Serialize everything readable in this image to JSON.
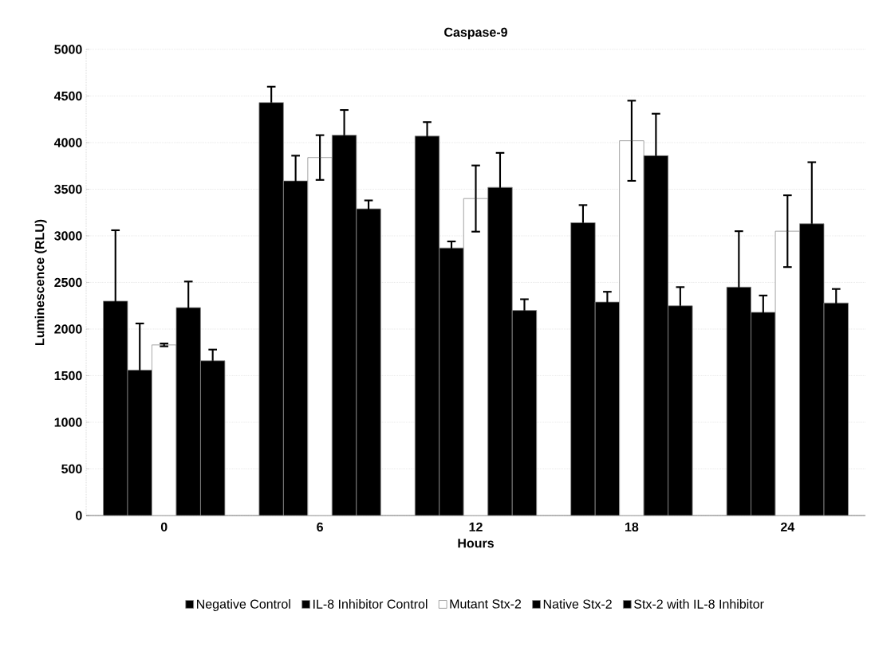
{
  "chart_data": {
    "type": "bar",
    "title": "Caspase-9",
    "xlabel": "Hours",
    "ylabel": "Luminescence (RLU)",
    "categories": [
      "0",
      "6",
      "12",
      "18",
      "24"
    ],
    "series": [
      {
        "name": "Negative Control",
        "color": "#000000",
        "values": [
          2300,
          4430,
          4070,
          3140,
          2450
        ],
        "errors": [
          760,
          170,
          150,
          190,
          600
        ]
      },
      {
        "name": "IL-8 Inhibitor Control",
        "color": "#000000",
        "values": [
          1560,
          3590,
          2870,
          2290,
          2180
        ],
        "errors": [
          500,
          270,
          70,
          110,
          180
        ]
      },
      {
        "name": "Mutant Stx-2",
        "color": "#ffffff",
        "values": [
          1830,
          3840,
          3400,
          4020,
          3050
        ],
        "errors": [
          15,
          240,
          355,
          430,
          385
        ]
      },
      {
        "name": "Native Stx-2",
        "color": "#000000",
        "values": [
          2230,
          4080,
          3520,
          3860,
          3130
        ],
        "errors": [
          280,
          270,
          370,
          450,
          660
        ]
      },
      {
        "name": "Stx-2 with IL-8 Inhibitor",
        "color": "#000000",
        "values": [
          1660,
          3290,
          2200,
          2250,
          2280
        ],
        "errors": [
          120,
          90,
          120,
          200,
          150
        ]
      }
    ],
    "ylim": [
      0,
      5000
    ],
    "yticks": [
      0,
      500,
      1000,
      1500,
      2000,
      2500,
      3000,
      3500,
      4000,
      4500,
      5000
    ],
    "grid": "y",
    "legend": "bottom"
  }
}
